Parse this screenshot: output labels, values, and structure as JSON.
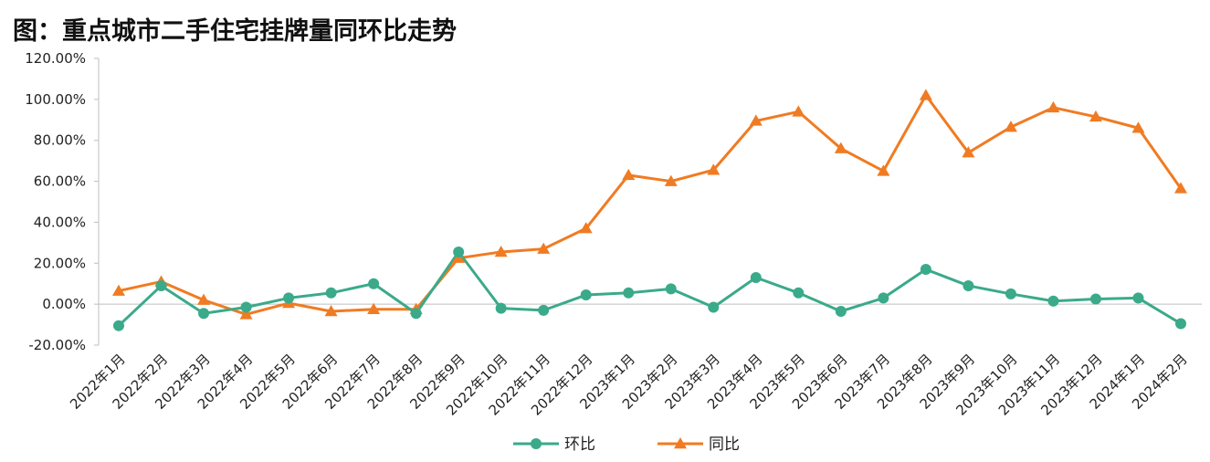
{
  "title": "图：重点城市二手住宅挂牌量同环比走势",
  "chart_data": {
    "type": "line",
    "title": "图：重点城市二手住宅挂牌量同环比走势",
    "categories": [
      "2022年1月",
      "2022年2月",
      "2022年3月",
      "2022年4月",
      "2022年5月",
      "2022年6月",
      "2022年7月",
      "2022年8月",
      "2022年9月",
      "2022年10月",
      "2022年11月",
      "2022年12月",
      "2023年1月",
      "2023年2月",
      "2023年3月",
      "2023年4月",
      "2023年5月",
      "2023年6月",
      "2023年7月",
      "2023年8月",
      "2023年9月",
      "2023年10月",
      "2023年11月",
      "2023年12月",
      "2024年1月",
      "2024年2月"
    ],
    "series": [
      {
        "name": "环比",
        "color": "#3aaa8a",
        "marker": "circle",
        "values": [
          -10.5,
          9.0,
          -4.5,
          -1.5,
          3.0,
          5.5,
          10.0,
          -4.5,
          25.5,
          -2.0,
          -3.0,
          4.5,
          5.5,
          7.5,
          -1.5,
          13.0,
          5.5,
          -3.5,
          3.0,
          17.0,
          9.0,
          5.0,
          1.5,
          2.5,
          3.0,
          -9.5
        ]
      },
      {
        "name": "同比",
        "color": "#f07b22",
        "marker": "triangle",
        "values": [
          6.5,
          11.0,
          2.0,
          -5.0,
          0.5,
          -3.5,
          -2.5,
          -2.5,
          22.5,
          25.5,
          27.0,
          37.0,
          63.0,
          60.0,
          65.5,
          89.5,
          94.0,
          76.0,
          65.0,
          102.0,
          74.0,
          86.5,
          96.0,
          91.5,
          86.0,
          56.5
        ]
      }
    ],
    "y_ticks": [
      "120.00%",
      "100.00%",
      "80.00%",
      "60.00%",
      "40.00%",
      "20.00%",
      "0.00%",
      "-20.00%"
    ],
    "ylim": [
      -20,
      120
    ],
    "grid": false,
    "legend_position": "bottom"
  }
}
